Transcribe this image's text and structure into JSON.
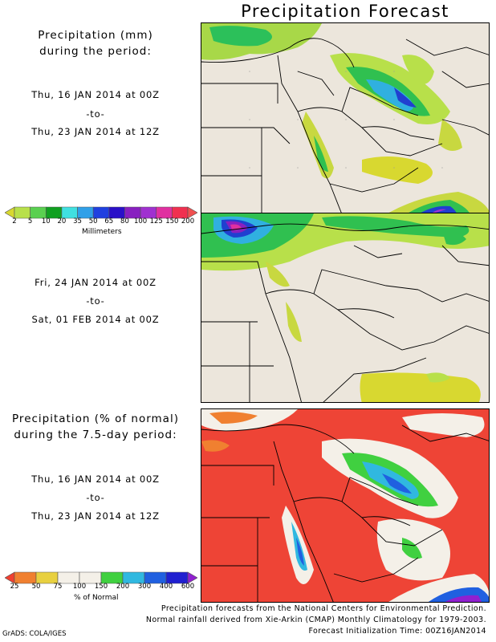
{
  "title": "Precipitation Forecast",
  "panel1": {
    "heading": [
      "Precipitation (mm)",
      "during the period:"
    ],
    "start": "Thu, 16 JAN 2014 at 00Z",
    "to": "-to-",
    "end": "Thu, 23 JAN 2014 at 12Z"
  },
  "panel2": {
    "start": "Fri, 24 JAN 2014 at 00Z",
    "to": "-to-",
    "end": "Sat, 01 FEB 2014 at 00Z"
  },
  "panel3": {
    "heading": [
      "Precipitation (% of normal)",
      "during the 7.5-day period:"
    ],
    "start": "Thu, 16 JAN 2014 at 00Z",
    "to": "-to-",
    "end": "Thu, 23 JAN 2014 at 12Z"
  },
  "legend_mm": {
    "title": "Millimeters",
    "ticks": [
      "2",
      "5",
      "10",
      "20",
      "35",
      "50",
      "65",
      "80",
      "100",
      "125",
      "150",
      "200"
    ],
    "colors": [
      "#d8d830",
      "#b8e04a",
      "#5ad050",
      "#10a020",
      "#40e0e0",
      "#30a0e8",
      "#2040e0",
      "#2a10c8",
      "#8820c0",
      "#a030d0",
      "#e030a0",
      "#f03050",
      "#f05050"
    ]
  },
  "legend_pct": {
    "title": "% of Normal",
    "ticks": [
      "25",
      "50",
      "75",
      "100",
      "150",
      "200",
      "300",
      "400",
      "600"
    ],
    "colors": [
      "#f04030",
      "#f08030",
      "#e8d040",
      "#f4f0e8",
      "#f4f0e8",
      "#40d040",
      "#30b8e0",
      "#2060e0",
      "#2020d0",
      "#9020d0"
    ]
  },
  "colors": {
    "land": "#ece6dc",
    "deficit": "#ee4436",
    "border": "#000000"
  },
  "footer": [
    "Precipitation forecasts from the National Centers for Environmental Prediction.",
    "Normal rainfall derived from Xie-Arkin (CMAP) Monthly Climatology for 1979-2003.",
    "Forecast Initialization Time: 00Z16JAN2014"
  ],
  "credit": "GrADS: COLA/IGES"
}
